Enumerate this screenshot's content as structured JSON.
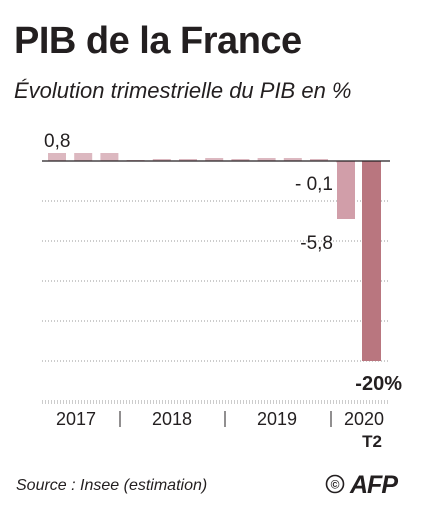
{
  "header": {
    "title": "PIB de la France",
    "subtitle": "Évolution trimestrielle du PIB en %"
  },
  "chart_data": {
    "type": "bar",
    "title": "PIB de la France",
    "subtitle": "Évolution trimestrielle du PIB en %",
    "xlabel": "",
    "ylabel": "",
    "ylim": [
      -20,
      1
    ],
    "grid": true,
    "year_labels": [
      "2017",
      "2018",
      "2019",
      "2020"
    ],
    "quarter_note": "T2",
    "categories": [
      "2017 T1",
      "2017 T2",
      "2017 T3",
      "2017 T4",
      "2018 T1",
      "2018 T2",
      "2018 T3",
      "2018 T4",
      "2019 T1",
      "2019 T2",
      "2019 T3",
      "2019 T4",
      "2020 T1",
      "2020 T2"
    ],
    "values": [
      0.8,
      0.8,
      0.8,
      0.1,
      0.2,
      0.2,
      0.3,
      0.2,
      0.3,
      0.3,
      0.2,
      -0.1,
      -5.8,
      -20
    ],
    "data_labels": [
      {
        "index": 0,
        "text": "0,8"
      },
      {
        "index": 11,
        "text": "- 0,1"
      },
      {
        "index": 12,
        "text": "-5,8"
      },
      {
        "index": 13,
        "text": "-20%"
      }
    ],
    "colors": {
      "light": "#dcb8c0",
      "medium": "#d19ea9",
      "dark": "#b9767f",
      "grid": "#9a9a9a",
      "axis": "#231f20"
    }
  },
  "footer": {
    "source": "Source : Insee (estimation)",
    "copyright_symbol": "©",
    "logo_text": "AFP"
  }
}
